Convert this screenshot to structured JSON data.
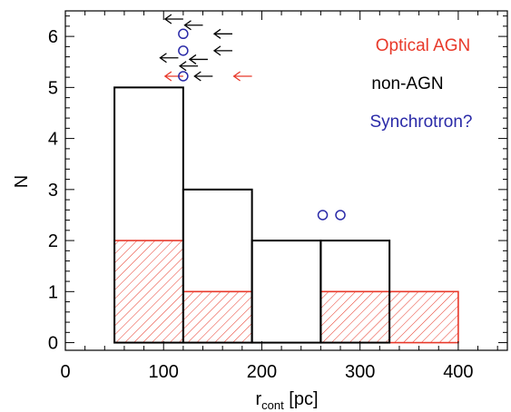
{
  "chart_data": {
    "type": "bar",
    "subtype": "histogram",
    "xlabel_main": "r",
    "xlabel_sub": "cont",
    "xlabel_unit": " [pc]",
    "ylabel": "N",
    "xlim": [
      0,
      450
    ],
    "ylim": [
      -0.15,
      6.5
    ],
    "x_ticks": [
      0,
      100,
      200,
      300,
      400
    ],
    "y_ticks": [
      0,
      1,
      2,
      3,
      4,
      5,
      6
    ],
    "bin_edges": [
      50,
      120,
      190,
      260,
      330,
      400
    ],
    "series": [
      {
        "name": "non-AGN",
        "style": "outline",
        "color": "#000000",
        "values": [
          5,
          3,
          2,
          2,
          0
        ]
      },
      {
        "name": "Optical AGN",
        "style": "hatched",
        "color": "#e8392a",
        "values": [
          2,
          1,
          0,
          1,
          1
        ]
      }
    ],
    "upper_limits": [
      {
        "x": 120,
        "y": 6.34,
        "color": "#000000"
      },
      {
        "x": 140,
        "y": 6.22,
        "color": "#000000"
      },
      {
        "x": 170,
        "y": 6.05,
        "color": "#000000"
      },
      {
        "x": 170,
        "y": 5.72,
        "color": "#000000"
      },
      {
        "x": 115,
        "y": 5.58,
        "color": "#000000"
      },
      {
        "x": 145,
        "y": 5.55,
        "color": "#000000"
      },
      {
        "x": 135,
        "y": 5.42,
        "color": "#000000"
      },
      {
        "x": 120,
        "y": 5.22,
        "color": "#e8392a"
      },
      {
        "x": 150,
        "y": 5.22,
        "color": "#000000"
      },
      {
        "x": 190,
        "y": 5.22,
        "color": "#e8392a"
      }
    ],
    "synchrotron_points": [
      {
        "x": 120,
        "y": 6.05
      },
      {
        "x": 120,
        "y": 5.72
      },
      {
        "x": 120,
        "y": 5.22
      },
      {
        "x": 262,
        "y": 2.5
      },
      {
        "x": 280,
        "y": 2.5
      }
    ],
    "legend": {
      "position": "top-right",
      "entries": [
        {
          "label": "Optical AGN",
          "color": "#e8392a"
        },
        {
          "label": "non-AGN",
          "color": "#000000"
        },
        {
          "label": "Synchrotron?",
          "color": "#2a2aa8"
        }
      ]
    },
    "grid": false
  }
}
